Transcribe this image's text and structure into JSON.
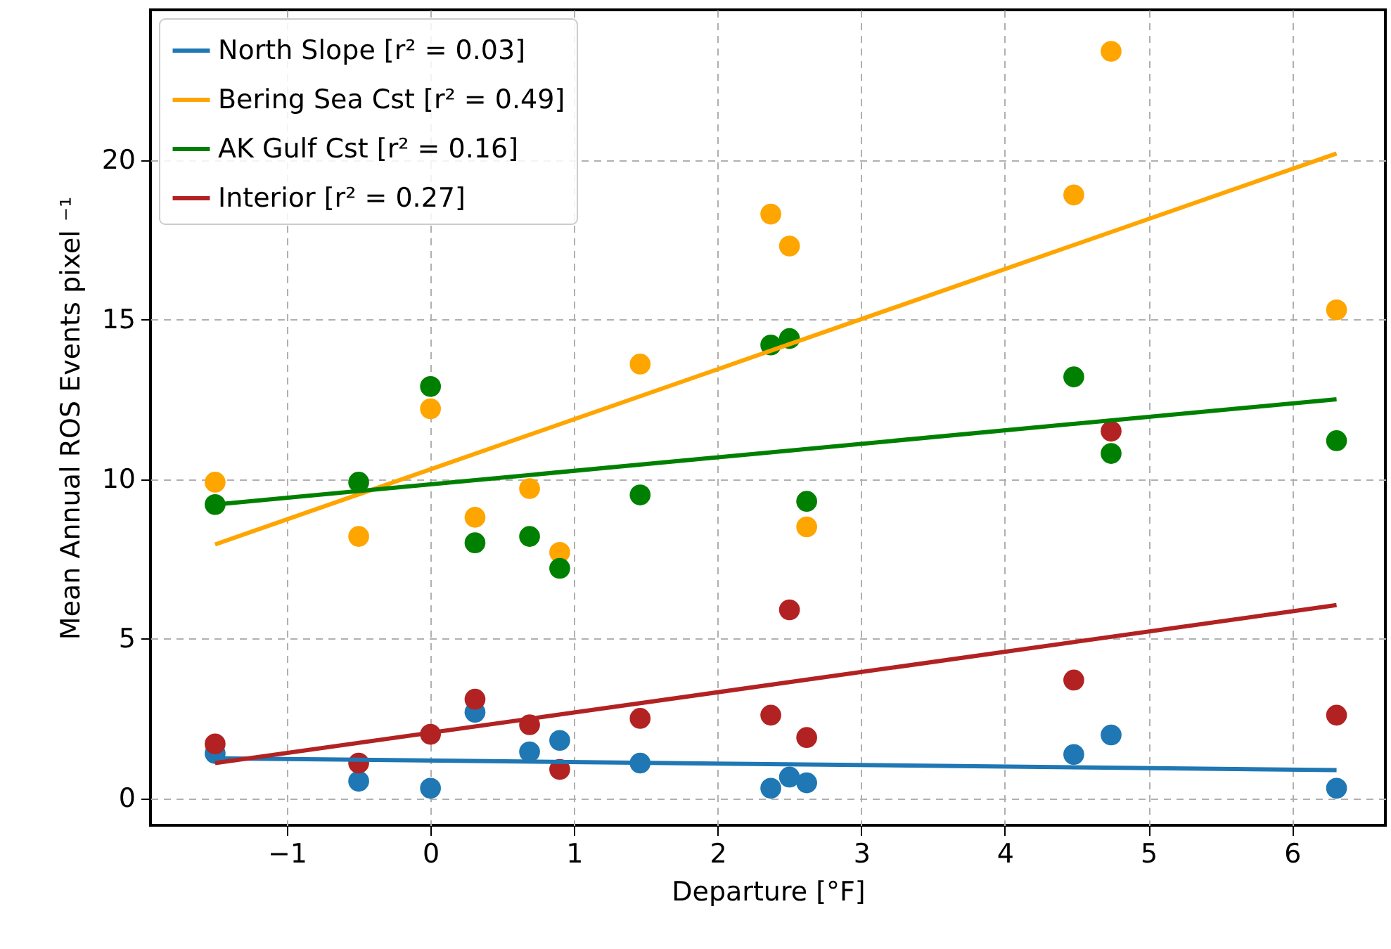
{
  "chart_data": {
    "type": "scatter",
    "xlabel": "Departure [°F]",
    "ylabel": "Mean Annual ROS Events pixel ⁻¹",
    "xlim": [
      -1.95,
      6.65
    ],
    "ylim": [
      -0.85,
      24.7
    ],
    "xticks": [
      -1,
      0,
      1,
      2,
      3,
      4,
      5,
      6
    ],
    "yticks": [
      0,
      5,
      10,
      15,
      20
    ],
    "grid": true,
    "legend": "top left",
    "series": [
      {
        "type": "scatter",
        "marker": "circle",
        "color": "#1f77b4",
        "x": [
          -1.5,
          -0.5,
          0,
          0.31,
          0.69,
          0.9,
          1.46,
          2.37,
          2.5,
          2.62,
          4.48,
          4.74,
          6.31
        ],
        "values": [
          1.4,
          0.53,
          0.31,
          2.69,
          1.45,
          1.81,
          1.1,
          0.31,
          0.66,
          0.48,
          1.37,
          1.98,
          0.31
        ]
      },
      {
        "type": "scatter",
        "marker": "circle",
        "color": "#ffa500",
        "x": [
          -1.5,
          -0.5,
          0,
          0.31,
          0.69,
          0.9,
          1.46,
          2.37,
          2.5,
          2.62,
          4.48,
          4.74,
          6.31
        ],
        "values": [
          9.9,
          8.2,
          12.2,
          8.8,
          9.7,
          7.7,
          13.6,
          18.3,
          17.3,
          8.5,
          18.9,
          23.4,
          15.3
        ]
      },
      {
        "type": "scatter",
        "marker": "circle",
        "color": "#008000",
        "x": [
          -1.5,
          -0.5,
          0,
          0.31,
          0.69,
          0.9,
          1.46,
          2.37,
          2.5,
          2.62,
          4.48,
          4.74,
          6.31
        ],
        "values": [
          9.2,
          9.9,
          12.9,
          8,
          8.2,
          7.2,
          9.5,
          14.2,
          14.4,
          9.3,
          13.2,
          10.8,
          11.2
        ]
      },
      {
        "type": "scatter",
        "marker": "circle",
        "color": "#b22222",
        "x": [
          -1.5,
          -0.5,
          0,
          0.31,
          0.69,
          0.9,
          1.46,
          2.37,
          2.5,
          2.62,
          4.48,
          4.74,
          6.31
        ],
        "values": [
          1.7,
          1.1,
          2,
          3.1,
          2.3,
          0.9,
          2.5,
          2.6,
          5.9,
          1.9,
          3.7,
          11.5,
          2.6
        ]
      },
      {
        "type": "line",
        "line_style": "solid",
        "name": "North Slope [r² = 0.03]",
        "color": "#1f77b4",
        "x": [
          -1.5,
          6.31
        ],
        "values": [
          1.25,
          0.88
        ]
      },
      {
        "type": "line",
        "line_style": "solid",
        "name": "Bering Sea Cst [r² = 0.49]",
        "color": "#ffa500",
        "x": [
          -1.5,
          6.31
        ],
        "values": [
          7.95,
          20.2
        ]
      },
      {
        "type": "line",
        "line_style": "solid",
        "name": "AK Gulf Cst [r² = 0.16]",
        "color": "#008000",
        "x": [
          -1.5,
          6.31
        ],
        "values": [
          9.2,
          12.5
        ]
      },
      {
        "type": "line",
        "line_style": "solid",
        "name": "Interior [r² = 0.27]",
        "color": "#b22222",
        "x": [
          -1.5,
          6.31
        ],
        "values": [
          1.1,
          6.05
        ]
      }
    ]
  }
}
